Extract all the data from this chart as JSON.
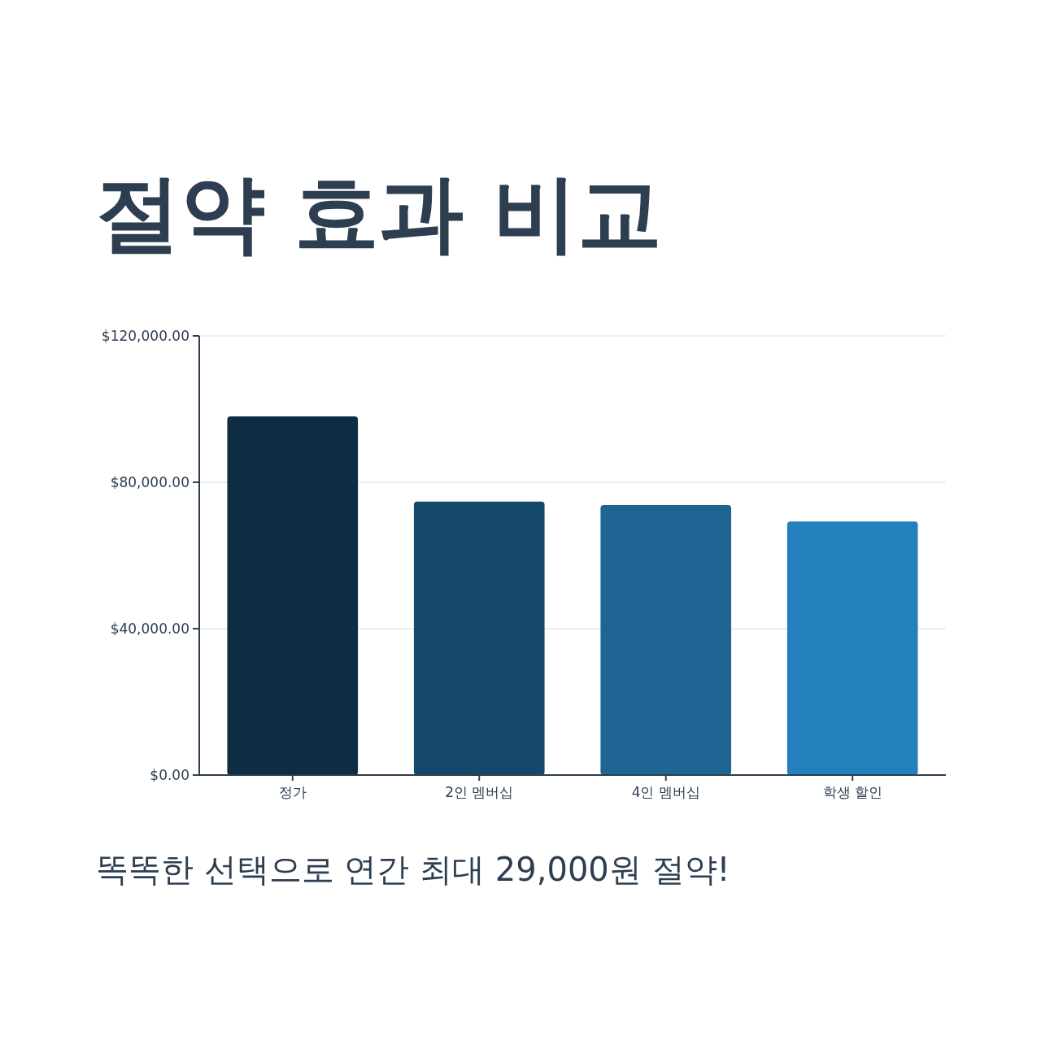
{
  "chart_data": {
    "type": "bar",
    "title": "절약 효과 비교",
    "categories": [
      "정가",
      "2인 멤버십",
      "4인 멤버십",
      "학생 할인"
    ],
    "values": [
      98000,
      74700,
      73800,
      69300
    ],
    "colors": [
      "#0e2c42",
      "#15496b",
      "#1e6593",
      "#2380bd"
    ],
    "ylim": [
      0,
      120000
    ],
    "yticks": [
      {
        "value": 0,
        "label": "$0.00"
      },
      {
        "value": 40000,
        "label": "$40,000.00"
      },
      {
        "value": 80000,
        "label": "$80,000.00"
      },
      {
        "value": 120000,
        "label": "$120,000.00"
      }
    ],
    "grid": "y",
    "annotations": [
      "똑똑한 선택으로 연간 최대 29,000원 절약!"
    ]
  }
}
